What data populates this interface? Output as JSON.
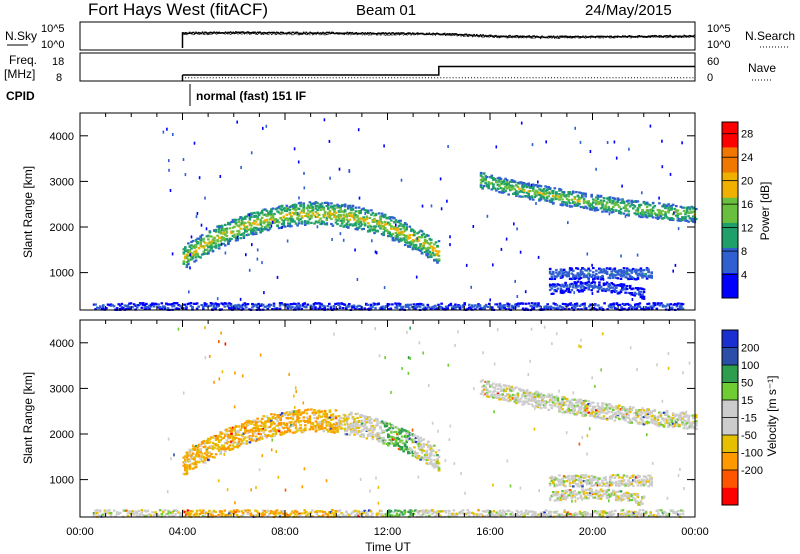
{
  "header": {
    "station": "Fort Hays West (fitACF)",
    "beam": "Beam 01",
    "date": "24/May/2015"
  },
  "strip_labels": {
    "nsky": "N.Sky",
    "nsearch": "N.Search",
    "freq": "Freq.",
    "freq_unit": "[MHz]",
    "nave": "Nave",
    "cpid": "CPID",
    "cpid_value": "normal (fast) 151 IF",
    "nsky_ticks": [
      "10^5",
      "10^0"
    ],
    "freq_ticks": [
      "18",
      "8"
    ],
    "nsearch_ticks": [
      "10^5",
      "10^0"
    ],
    "nave_ticks": [
      "60",
      "0"
    ]
  },
  "colors": {
    "power_scale": [
      "#0000ff",
      "#2f5fd0",
      "#1f9f6a",
      "#6bbf3f",
      "#f0b000",
      "#f07800",
      "#ff0000"
    ],
    "velocity_scale": [
      "#ff0000",
      "#ff5500",
      "#ff9900",
      "#e6c000",
      "#cccccc",
      "#cccccc",
      "#6fcc33",
      "#2e9e4e",
      "#2b4fa8",
      "#1a2fd0"
    ]
  },
  "chart_data": [
    {
      "type": "line",
      "name": "nsky_nsearch_strip",
      "x": [
        "04:00",
        "06:00",
        "08:00",
        "10:00",
        "12:00",
        "14:00",
        "16:00",
        "18:00",
        "20:00",
        "22:00",
        "24:00"
      ],
      "nsky_log10": [
        3.3,
        3.4,
        3.3,
        3.3,
        3.2,
        3.1,
        2.7,
        2.5,
        2.5,
        2.6,
        2.7
      ],
      "nsearch_log10": [
        3.0,
        3.1,
        3.0,
        3.0,
        2.9,
        2.9,
        2.4,
        2.2,
        2.3,
        2.4,
        2.4
      ],
      "xlim_hours": [
        0,
        24
      ]
    },
    {
      "type": "line",
      "name": "freq_nave_strip",
      "x": [
        "04:00",
        "14:00",
        "14:00",
        "24:00"
      ],
      "freq_mhz": [
        10.5,
        10.5,
        15.8,
        15.8
      ],
      "nave": [
        8,
        8,
        8,
        8
      ]
    },
    {
      "type": "heatmap",
      "name": "power_panel",
      "xlabel": "",
      "ylabel": "Slant Range [km]",
      "xlim_hours": [
        0,
        24
      ],
      "ylim": [
        180,
        4500
      ],
      "yticks": [
        1000,
        2000,
        3000,
        4000
      ],
      "colorbar": {
        "label": "Power [dB]",
        "ticks": [
          4,
          8,
          12,
          16,
          20,
          24,
          28
        ],
        "range": [
          0,
          30
        ]
      },
      "scatter_bands": [
        {
          "t_start": 4.0,
          "t_end": 14.0,
          "range_at_start_km": 1350,
          "range_at_mid_km": 2250,
          "mid_hour": 10.5,
          "range_at_end_km": 1450,
          "thickness_km": 500,
          "peak_power_db": 18
        },
        {
          "t_start": 15.6,
          "t_end": 24.0,
          "range_at_start_km": 3050,
          "range_at_mid_km": 2650,
          "mid_hour": 19.0,
          "range_at_end_km": 2300,
          "thickness_km": 350,
          "peak_power_db": 16
        },
        {
          "t_start": 18.3,
          "t_end": 22.3,
          "range_at_start_km": 1000,
          "range_at_mid_km": 1000,
          "mid_hour": 20.3,
          "range_at_end_km": 1000,
          "thickness_km": 250,
          "peak_power_db": 8
        },
        {
          "t_start": 18.3,
          "t_end": 22.0,
          "range_at_start_km": 650,
          "range_at_mid_km": 700,
          "mid_hour": 20.5,
          "range_at_end_km": 550,
          "thickness_km": 220,
          "peak_power_db": 6
        },
        {
          "t_start": 0.5,
          "t_end": 23.5,
          "range_at_start_km": 280,
          "range_at_mid_km": 280,
          "mid_hour": 12.0,
          "range_at_end_km": 280,
          "thickness_km": 150,
          "peak_power_db": 6
        }
      ]
    },
    {
      "type": "heatmap",
      "name": "velocity_panel",
      "xlabel": "Time UT",
      "ylabel": "Slant Range [km]",
      "xlim_hours": [
        0,
        24
      ],
      "ylim": [
        180,
        4500
      ],
      "yticks": [
        1000,
        2000,
        3000,
        4000
      ],
      "xticks": [
        "00:00",
        "04:00",
        "08:00",
        "12:00",
        "16:00",
        "20:00",
        "00:00"
      ],
      "colorbar": {
        "label": "Velocity [m s⁻¹]",
        "ticks": [
          "200",
          "100",
          "50",
          "15",
          "-15",
          "-50",
          "-100",
          "-200"
        ]
      },
      "dominant_velocity_ms": [
        {
          "t_start": 4.0,
          "t_end": 10.0,
          "range_km": 1900,
          "velocity": -30
        },
        {
          "t_start": 10.0,
          "t_end": 11.8,
          "range_km": 2100,
          "velocity": -5
        },
        {
          "t_start": 11.8,
          "t_end": 13.0,
          "range_km": 1800,
          "velocity": 30
        },
        {
          "t_start": 13.0,
          "t_end": 14.0,
          "range_km": 1500,
          "velocity": 0
        },
        {
          "t_start": 15.6,
          "t_end": 24.0,
          "range_km": 2700,
          "velocity": 0
        }
      ]
    }
  ]
}
